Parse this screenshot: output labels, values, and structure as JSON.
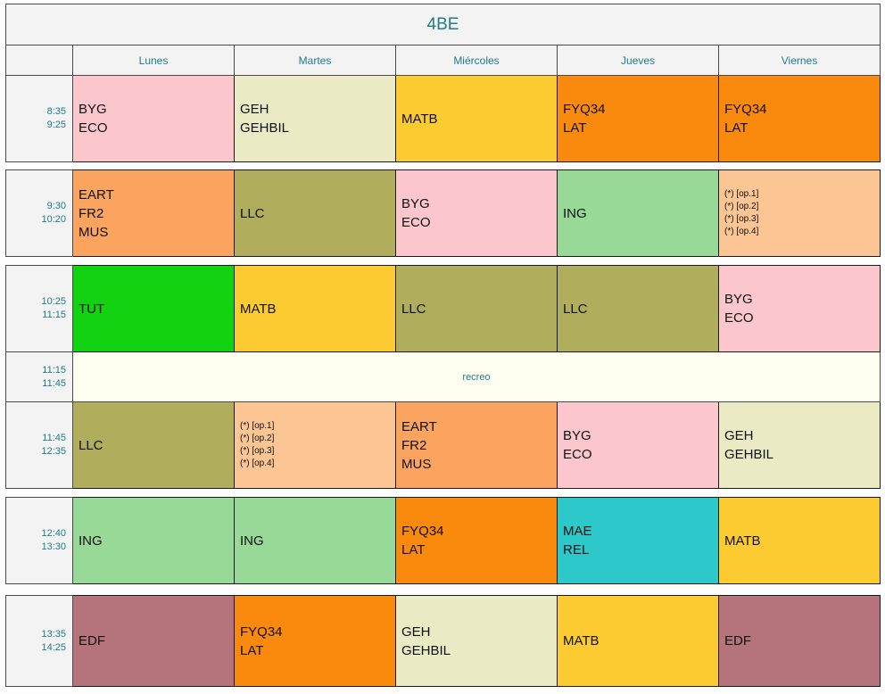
{
  "title": "4BE",
  "days": [
    "Lunes",
    "Martes",
    "Miércoles",
    "Jueves",
    "Viernes"
  ],
  "break_label": "recreo",
  "colors": {
    "pink": "#fbc7cc",
    "cream": "#eaeac4",
    "yellow": "#fccb32",
    "orange": "#fa8a0d",
    "lightorange": "#faa45f",
    "olive": "#b0ad5c",
    "green": "#12d212",
    "lightgreen": "#98d998",
    "peach": "#fcc694",
    "teal": "#2dc8c9",
    "rose": "#b5747c",
    "header_gray": "#f3f3f3",
    "break_ivory": "#fffef0",
    "accent_teal": "#1e7b8a"
  },
  "rows": [
    {
      "time": "8:35\n9:25",
      "cells": [
        {
          "text": "BYG\nECO",
          "color": "pink"
        },
        {
          "text": "GEH\nGEHBIL",
          "color": "cream"
        },
        {
          "text": "MATB",
          "color": "yellow"
        },
        {
          "text": "FYQ34\nLAT",
          "color": "orange"
        },
        {
          "text": "FYQ34\nLAT",
          "color": "orange"
        }
      ]
    },
    {
      "time": "9:30\n10:20",
      "cells": [
        {
          "text": "EART\nFR2\nMUS",
          "color": "lightorange"
        },
        {
          "text": "LLC",
          "color": "olive"
        },
        {
          "text": "BYG\nECO",
          "color": "pink"
        },
        {
          "text": "ING",
          "color": "lightgreen"
        },
        {
          "text": "(*) [op.1]\n(*) [op.2]\n(*) [op.3]\n(*) [op.4]",
          "color": "peach",
          "small": true
        }
      ]
    },
    {
      "time": "10:25\n11:15",
      "cells": [
        {
          "text": "TUT",
          "color": "green"
        },
        {
          "text": "MATB",
          "color": "yellow"
        },
        {
          "text": "LLC",
          "color": "olive"
        },
        {
          "text": "LLC",
          "color": "olive"
        },
        {
          "text": "BYG\nECO",
          "color": "pink"
        }
      ]
    },
    {
      "time": "11:15\n11:45",
      "break": true
    },
    {
      "time": "11:45\n12:35",
      "cells": [
        {
          "text": "LLC",
          "color": "olive"
        },
        {
          "text": "(*) [op.1]\n(*) [op.2]\n(*) [op.3]\n(*) [op.4]",
          "color": "peach",
          "small": true
        },
        {
          "text": "EART\nFR2\nMUS",
          "color": "lightorange"
        },
        {
          "text": "BYG\nECO",
          "color": "pink"
        },
        {
          "text": "GEH\nGEHBIL",
          "color": "cream"
        }
      ]
    },
    {
      "time": "12:40\n13:30",
      "cells": [
        {
          "text": "ING",
          "color": "lightgreen"
        },
        {
          "text": "ING",
          "color": "lightgreen"
        },
        {
          "text": "FYQ34\nLAT",
          "color": "orange"
        },
        {
          "text": "MAE\nREL",
          "color": "teal"
        },
        {
          "text": "MATB",
          "color": "yellow"
        }
      ]
    },
    {
      "time": "13:35\n14:25",
      "cells": [
        {
          "text": "EDF",
          "color": "rose"
        },
        {
          "text": "FYQ34\nLAT",
          "color": "orange"
        },
        {
          "text": "GEH\nGEHBIL",
          "color": "cream"
        },
        {
          "text": "MATB",
          "color": "yellow"
        },
        {
          "text": "EDF",
          "color": "rose"
        }
      ]
    }
  ]
}
